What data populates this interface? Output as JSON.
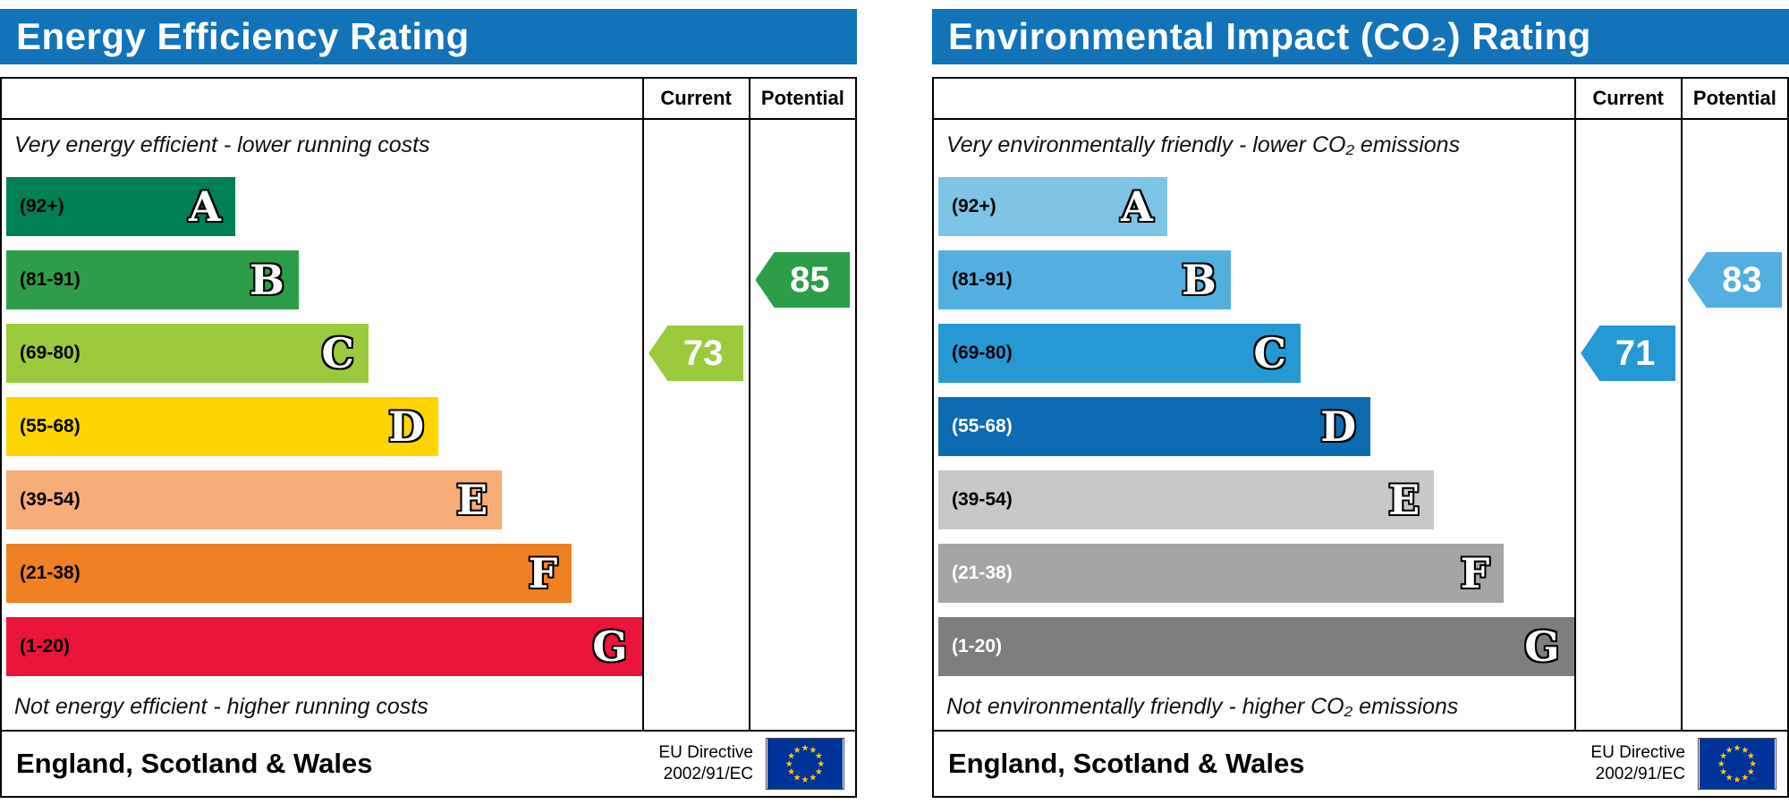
{
  "header_color": "#1273b9",
  "columns": {
    "current": "Current",
    "potential": "Potential"
  },
  "region_label": "England, Scotland & Wales",
  "eu": {
    "directive_line1": "EU Directive",
    "directive_line2": "2002/91/EC",
    "flag_bg": "#003399",
    "star_color": "#ffcc00"
  },
  "chart_data": [
    {
      "type": "bar",
      "title": "Energy Efficiency Rating",
      "top_caption": "Very energy efficient - lower running costs",
      "bottom_caption": "Not energy efficient - higher running costs",
      "bands": [
        {
          "letter": "A",
          "range": "(92+)",
          "color": "#008054",
          "width_percent": 36,
          "label_color": "#000000"
        },
        {
          "letter": "B",
          "range": "(81-91)",
          "color": "#2e9d49",
          "width_percent": 46,
          "label_color": "#000000"
        },
        {
          "letter": "C",
          "range": "(69-80)",
          "color": "#9bca3d",
          "width_percent": 57,
          "label_color": "#000000"
        },
        {
          "letter": "D",
          "range": "(55-68)",
          "color": "#ffd500",
          "width_percent": 68,
          "label_color": "#000000"
        },
        {
          "letter": "E",
          "range": "(39-54)",
          "color": "#f7ad77",
          "width_percent": 78,
          "label_color": "#000000"
        },
        {
          "letter": "F",
          "range": "(21-38)",
          "color": "#ef8023",
          "width_percent": 89,
          "label_color": "#000000"
        },
        {
          "letter": "G",
          "range": "(1-20)",
          "color": "#e9153b",
          "width_percent": 100,
          "label_color": "#000000"
        }
      ],
      "current": {
        "value": 73,
        "band": "C",
        "row": 2,
        "color": "#9bca3d"
      },
      "potential": {
        "value": 85,
        "band": "B",
        "row": 1,
        "color": "#2e9d49"
      }
    },
    {
      "type": "bar",
      "title": "Environmental Impact (CO₂) Rating",
      "top_caption": "Very environmentally friendly - lower CO₂ emissions",
      "bottom_caption": "Not environmentally friendly - higher CO₂ emissions",
      "bands": [
        {
          "letter": "A",
          "range": "(92+)",
          "color": "#7fc3e5",
          "width_percent": 36,
          "label_color": "#000000"
        },
        {
          "letter": "B",
          "range": "(81-91)",
          "color": "#53afdf",
          "width_percent": 46,
          "label_color": "#000000"
        },
        {
          "letter": "C",
          "range": "(69-80)",
          "color": "#2699d4",
          "width_percent": 57,
          "label_color": "#000000"
        },
        {
          "letter": "D",
          "range": "(55-68)",
          "color": "#0e6ab1",
          "width_percent": 68,
          "label_color": "#ffffff"
        },
        {
          "letter": "E",
          "range": "(39-54)",
          "color": "#c8c8c8",
          "width_percent": 78,
          "label_color": "#000000"
        },
        {
          "letter": "F",
          "range": "(21-38)",
          "color": "#a5a5a5",
          "width_percent": 89,
          "label_color": "#ffffff"
        },
        {
          "letter": "G",
          "range": "(1-20)",
          "color": "#7e7e7e",
          "width_percent": 100,
          "label_color": "#ffffff"
        }
      ],
      "current": {
        "value": 71,
        "band": "C",
        "row": 2,
        "color": "#2699d4"
      },
      "potential": {
        "value": 83,
        "band": "B",
        "row": 1,
        "color": "#53afdf"
      }
    }
  ]
}
